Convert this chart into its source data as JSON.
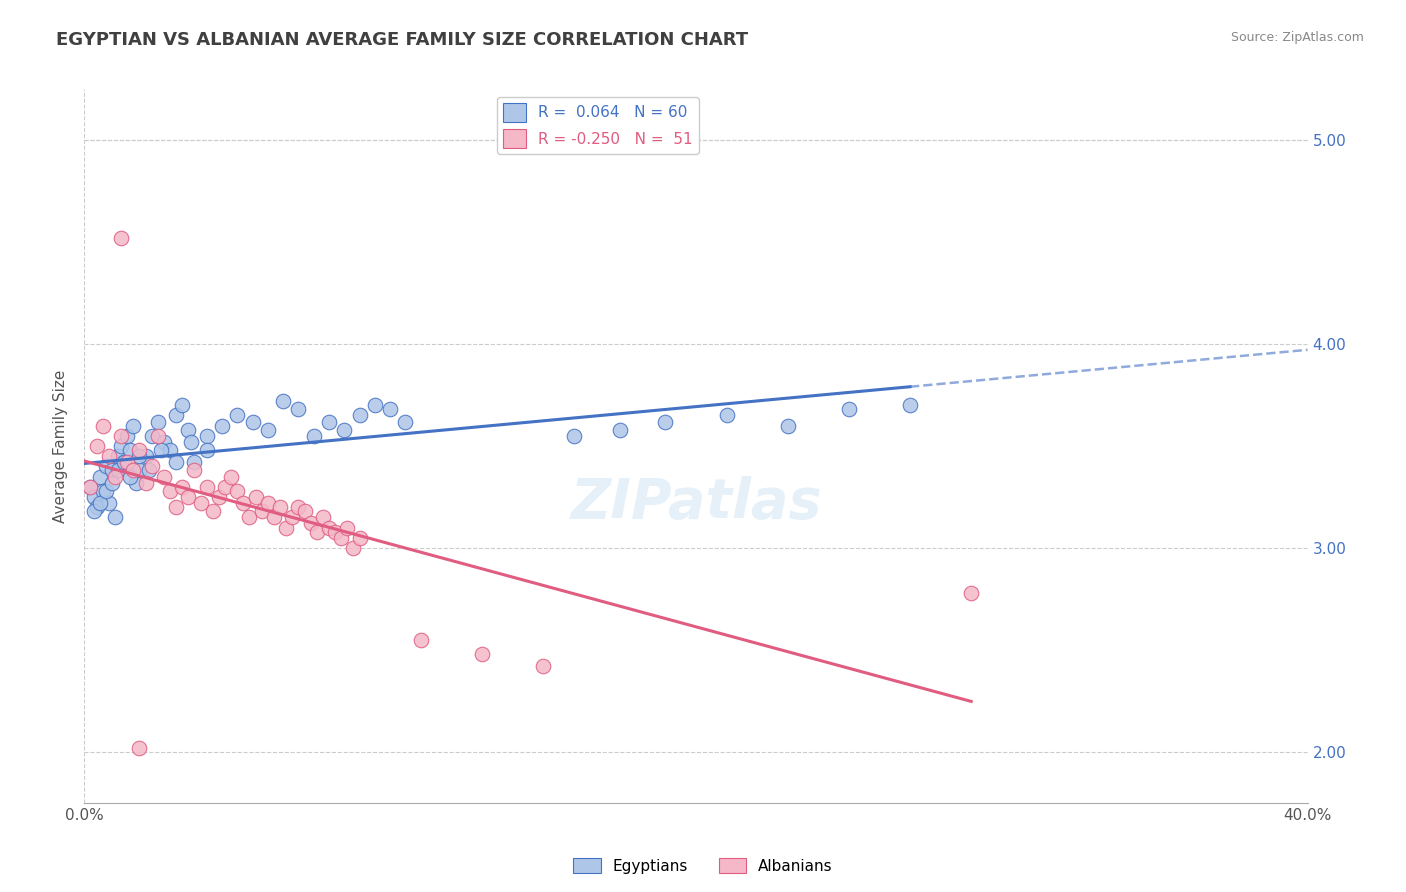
{
  "title": "EGYPTIAN VS ALBANIAN AVERAGE FAMILY SIZE CORRELATION CHART",
  "source_text": "Source: ZipAtlas.com",
  "ylabel": "Average Family Size",
  "xlim": [
    0.0,
    0.4
  ],
  "ylim": [
    1.75,
    5.25
  ],
  "yticks": [
    2.0,
    3.0,
    4.0,
    5.0
  ],
  "xticks": [
    0.0,
    0.05,
    0.1,
    0.15,
    0.2,
    0.25,
    0.3,
    0.35,
    0.4
  ],
  "egyptian_color": "#aec6e8",
  "albanian_color": "#f4b8c8",
  "egyptian_line_color": "#4472c4",
  "albanian_line_color": "#e05c80",
  "R_egyptian": 0.064,
  "N_egyptian": 60,
  "R_albanian": -0.25,
  "N_albanian": 51,
  "watermark": "ZIPatlas",
  "background_color": "#ffffff",
  "grid_color": "#cccccc",
  "title_color": "#404040",
  "right_axis_color": "#4472c4",
  "egyptian_scatter_x": [
    0.002,
    0.003,
    0.004,
    0.005,
    0.006,
    0.007,
    0.008,
    0.009,
    0.01,
    0.011,
    0.012,
    0.013,
    0.014,
    0.015,
    0.016,
    0.017,
    0.018,
    0.02,
    0.022,
    0.024,
    0.026,
    0.028,
    0.03,
    0.032,
    0.034,
    0.036,
    0.04,
    0.045,
    0.05,
    0.055,
    0.06,
    0.065,
    0.07,
    0.075,
    0.08,
    0.085,
    0.09,
    0.095,
    0.1,
    0.105,
    0.003,
    0.005,
    0.007,
    0.009,
    0.011,
    0.013,
    0.015,
    0.018,
    0.021,
    0.025,
    0.03,
    0.035,
    0.04,
    0.16,
    0.175,
    0.19,
    0.21,
    0.23,
    0.25,
    0.27
  ],
  "egyptian_scatter_y": [
    3.3,
    3.25,
    3.2,
    3.35,
    3.28,
    3.4,
    3.22,
    3.38,
    3.15,
    3.45,
    3.5,
    3.42,
    3.55,
    3.48,
    3.6,
    3.32,
    3.38,
    3.45,
    3.55,
    3.62,
    3.52,
    3.48,
    3.65,
    3.7,
    3.58,
    3.42,
    3.55,
    3.6,
    3.65,
    3.62,
    3.58,
    3.72,
    3.68,
    3.55,
    3.62,
    3.58,
    3.65,
    3.7,
    3.68,
    3.62,
    3.18,
    3.22,
    3.28,
    3.32,
    3.38,
    3.42,
    3.35,
    3.45,
    3.38,
    3.48,
    3.42,
    3.52,
    3.48,
    3.55,
    3.58,
    3.62,
    3.65,
    3.6,
    3.68,
    3.7
  ],
  "albanian_scatter_x": [
    0.002,
    0.004,
    0.006,
    0.008,
    0.01,
    0.012,
    0.014,
    0.016,
    0.018,
    0.02,
    0.022,
    0.024,
    0.026,
    0.028,
    0.03,
    0.032,
    0.034,
    0.036,
    0.038,
    0.04,
    0.042,
    0.044,
    0.046,
    0.048,
    0.05,
    0.052,
    0.054,
    0.056,
    0.058,
    0.06,
    0.062,
    0.064,
    0.066,
    0.068,
    0.07,
    0.072,
    0.074,
    0.076,
    0.078,
    0.08,
    0.082,
    0.084,
    0.086,
    0.088,
    0.09,
    0.11,
    0.13,
    0.15,
    0.29,
    0.012,
    0.018
  ],
  "albanian_scatter_y": [
    3.3,
    3.5,
    3.6,
    3.45,
    3.35,
    3.55,
    3.42,
    3.38,
    3.48,
    3.32,
    3.4,
    3.55,
    3.35,
    3.28,
    3.2,
    3.3,
    3.25,
    3.38,
    3.22,
    3.3,
    3.18,
    3.25,
    3.3,
    3.35,
    3.28,
    3.22,
    3.15,
    3.25,
    3.18,
    3.22,
    3.15,
    3.2,
    3.1,
    3.15,
    3.2,
    3.18,
    3.12,
    3.08,
    3.15,
    3.1,
    3.08,
    3.05,
    3.1,
    3.0,
    3.05,
    2.55,
    2.48,
    2.42,
    2.78,
    4.52,
    2.02
  ]
}
